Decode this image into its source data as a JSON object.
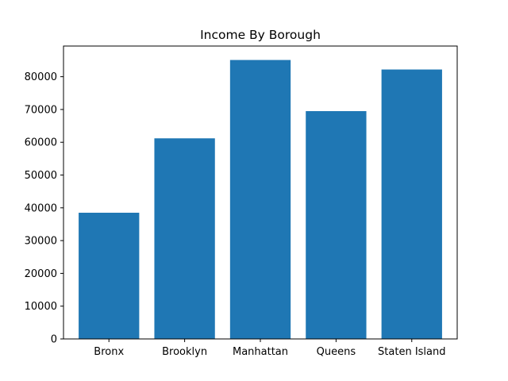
{
  "chart_data": {
    "type": "bar",
    "title": "Income By Borough",
    "xlabel": "",
    "ylabel": "",
    "categories": [
      "Bronx",
      "Brooklyn",
      "Manhattan",
      "Queens",
      "Staten Island"
    ],
    "values": [
      38500,
      61200,
      85100,
      69500,
      82200
    ],
    "ylim": [
      0,
      89355
    ],
    "yticks": [
      0,
      10000,
      20000,
      30000,
      40000,
      50000,
      60000,
      70000,
      80000
    ],
    "bar_color": "#1f77b4",
    "grid": false
  }
}
